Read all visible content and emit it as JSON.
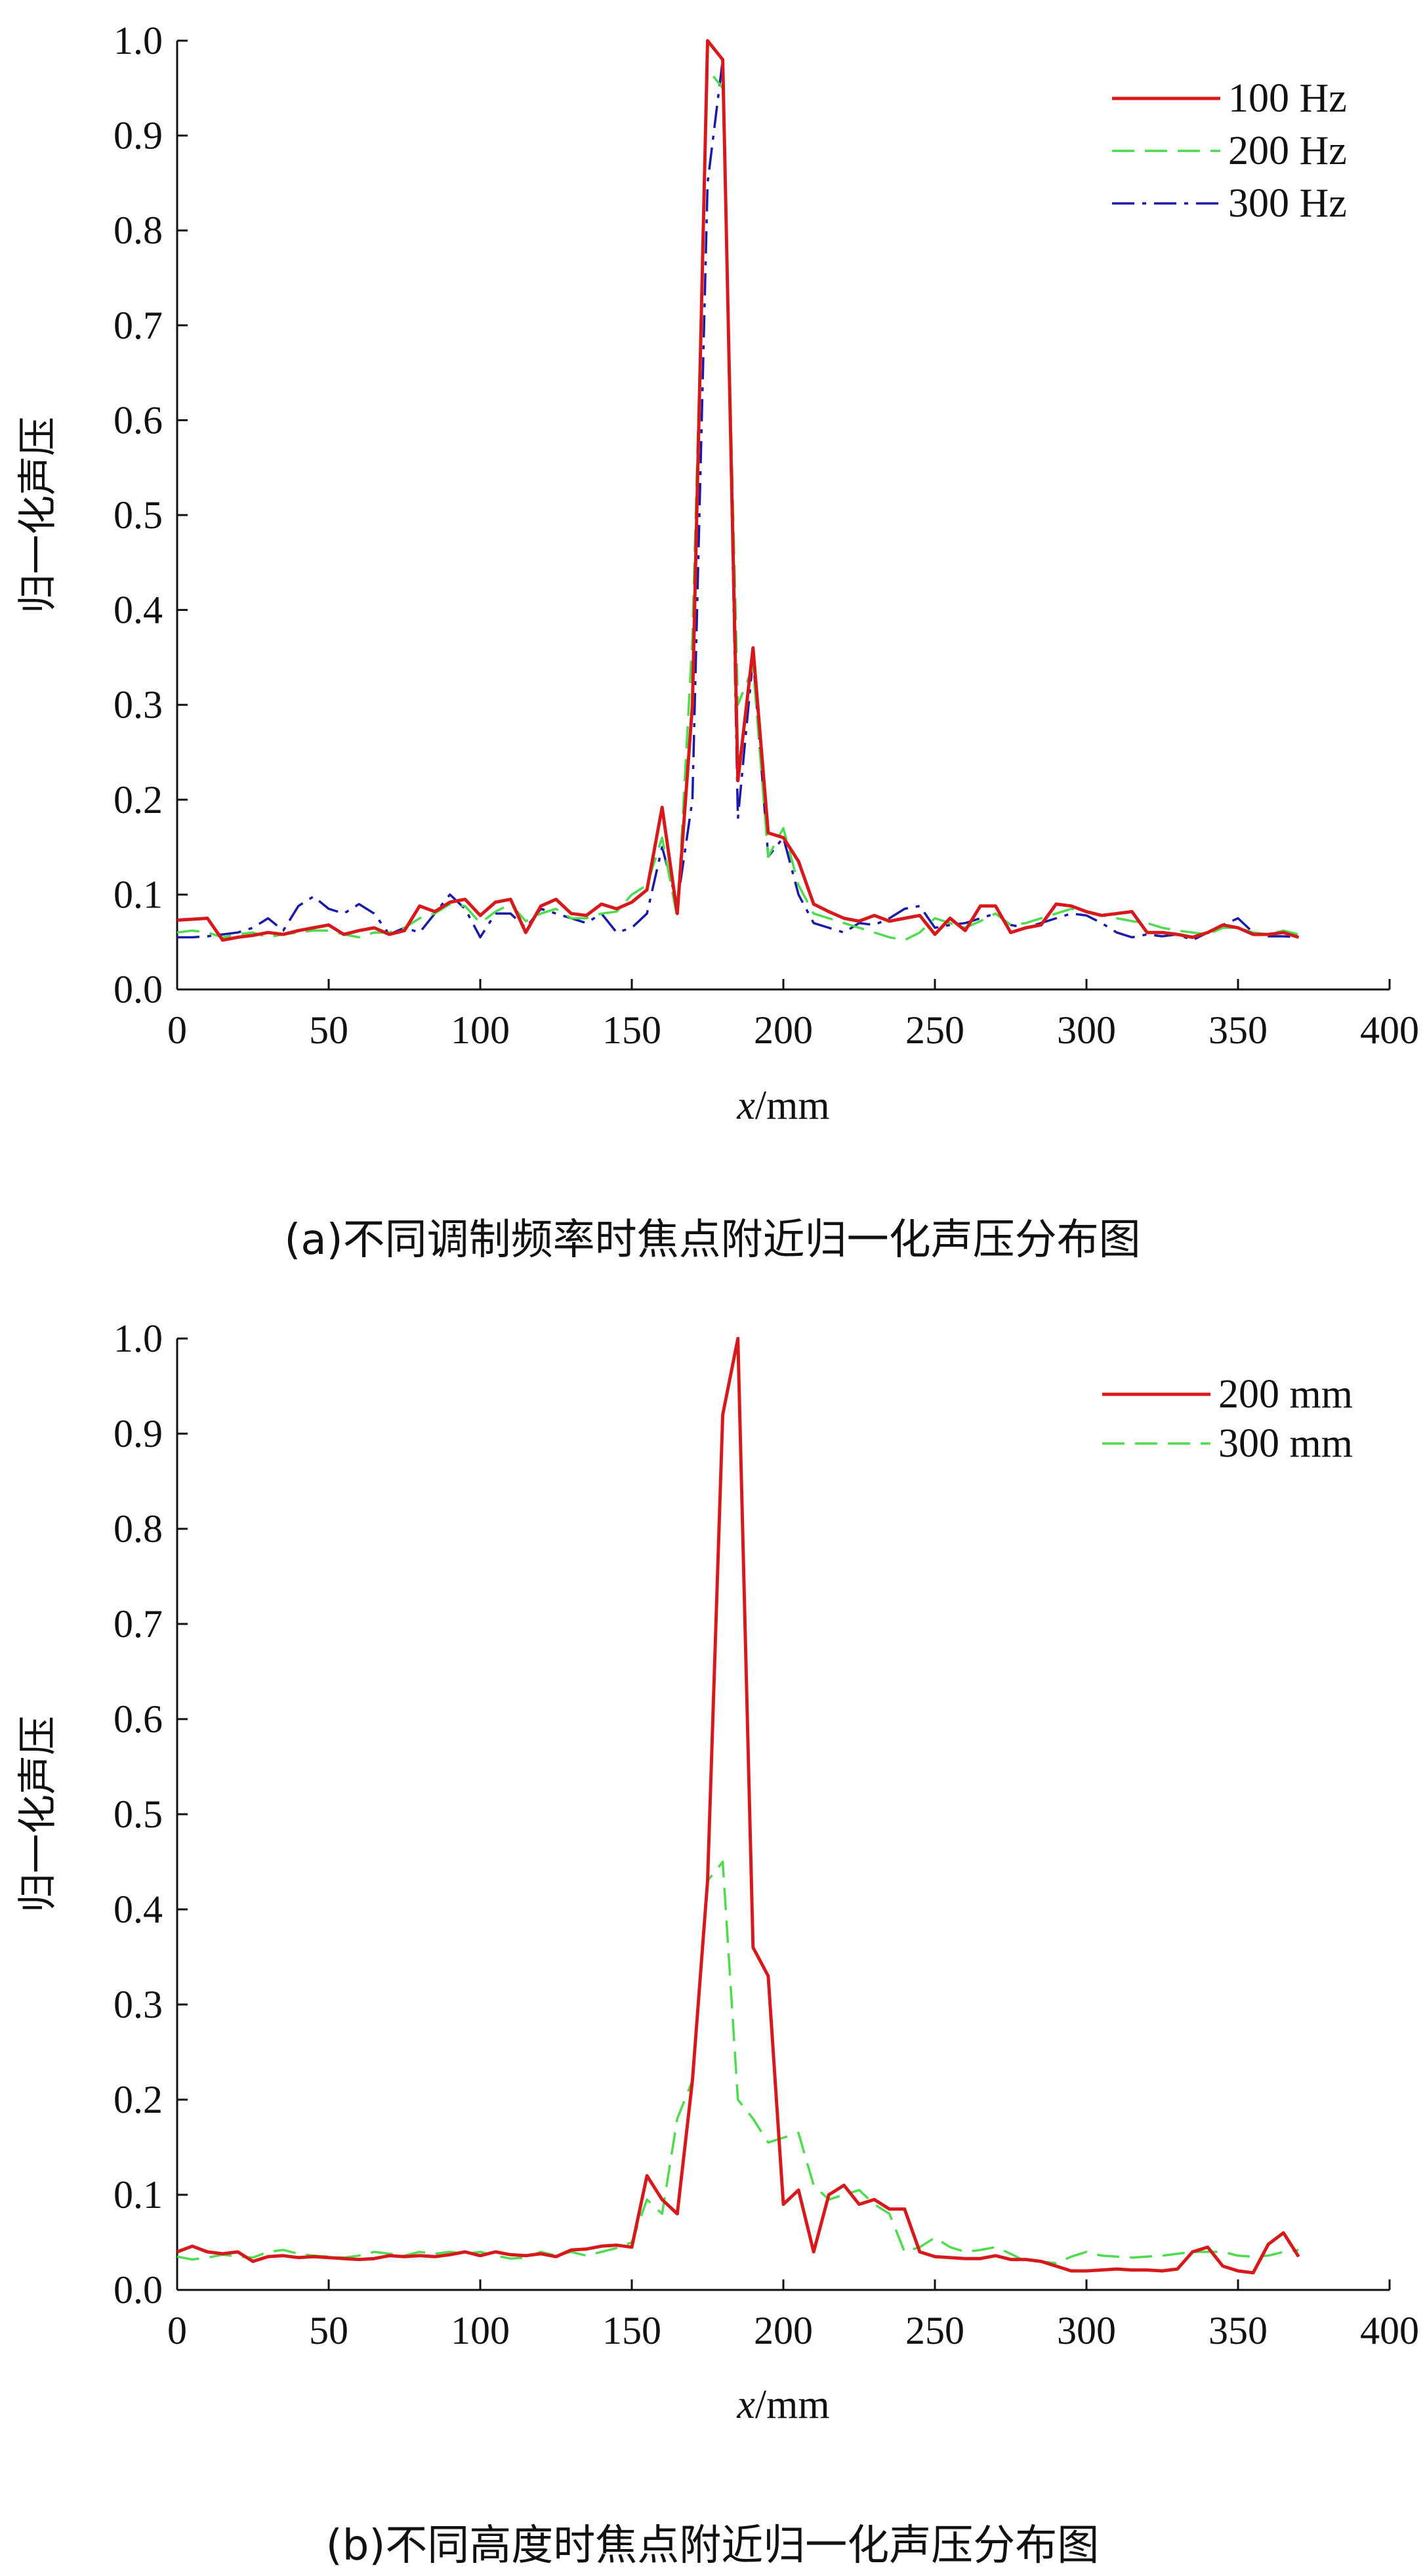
{
  "figure": {
    "caption_a": "(a)不同调制频率时焦点附近归一化声压分布图",
    "caption_b": "(b)不同高度时焦点附近归一化声压分布图"
  },
  "chart_data": [
    {
      "type": "line",
      "title": "",
      "xlabel_italic": "x",
      "xlabel_unit": "/mm",
      "ylabel": "归一化声压",
      "xlim": [
        0,
        400
      ],
      "ylim": [
        0,
        1.0
      ],
      "xticks": [
        "0",
        "50",
        "100",
        "150",
        "200",
        "250",
        "300",
        "350",
        "400"
      ],
      "yticks": [
        "0.0",
        "0.1",
        "0.2",
        "0.3",
        "0.4",
        "0.5",
        "0.6",
        "0.7",
        "0.8",
        "0.9",
        "1.0"
      ],
      "legend_position": "top-right",
      "x": [
        0,
        5,
        10,
        15,
        20,
        25,
        30,
        35,
        40,
        45,
        50,
        55,
        60,
        65,
        70,
        75,
        80,
        85,
        90,
        95,
        100,
        105,
        110,
        115,
        120,
        125,
        130,
        135,
        140,
        145,
        150,
        155,
        160,
        165,
        170,
        175,
        180,
        185,
        190,
        195,
        200,
        205,
        210,
        215,
        220,
        225,
        230,
        235,
        240,
        245,
        250,
        255,
        260,
        265,
        270,
        275,
        280,
        285,
        290,
        295,
        300,
        305,
        310,
        315,
        320,
        325,
        330,
        335,
        340,
        345,
        350,
        355,
        360,
        365,
        370
      ],
      "series": [
        {
          "name": "100 Hz",
          "color": "#d7191c",
          "dash": "solid",
          "values": [
            0.073,
            0.074,
            0.075,
            0.052,
            0.055,
            0.057,
            0.06,
            0.058,
            0.062,
            0.065,
            0.068,
            0.058,
            0.062,
            0.065,
            0.058,
            0.062,
            0.088,
            0.082,
            0.092,
            0.095,
            0.078,
            0.092,
            0.095,
            0.06,
            0.088,
            0.095,
            0.08,
            0.078,
            0.09,
            0.085,
            0.092,
            0.105,
            0.192,
            0.08,
            0.3,
            1.0,
            0.98,
            0.22,
            0.36,
            0.165,
            0.16,
            0.135,
            0.09,
            0.082,
            0.075,
            0.072,
            0.078,
            0.072,
            0.075,
            0.078,
            0.058,
            0.075,
            0.062,
            0.088,
            0.088,
            0.06,
            0.065,
            0.068,
            0.09,
            0.088,
            0.082,
            0.078,
            0.08,
            0.082,
            0.06,
            0.06,
            0.058,
            0.055,
            0.06,
            0.068,
            0.065,
            0.058,
            0.058,
            0.06,
            0.055
          ]
        },
        {
          "name": "200 Hz",
          "color": "#4ddc4d",
          "dash": "dashed",
          "values": [
            0.06,
            0.062,
            0.06,
            0.055,
            0.058,
            0.06,
            0.055,
            0.058,
            0.06,
            0.062,
            0.062,
            0.058,
            0.055,
            0.06,
            0.06,
            0.065,
            0.075,
            0.08,
            0.09,
            0.088,
            0.07,
            0.082,
            0.09,
            0.072,
            0.08,
            0.085,
            0.075,
            0.075,
            0.08,
            0.082,
            0.1,
            0.11,
            0.16,
            0.075,
            0.37,
            0.97,
            0.95,
            0.3,
            0.34,
            0.14,
            0.17,
            0.11,
            0.08,
            0.075,
            0.07,
            0.065,
            0.06,
            0.055,
            0.052,
            0.06,
            0.075,
            0.07,
            0.065,
            0.072,
            0.08,
            0.068,
            0.07,
            0.075,
            0.08,
            0.085,
            0.082,
            0.078,
            0.075,
            0.072,
            0.07,
            0.065,
            0.062,
            0.06,
            0.058,
            0.065,
            0.065,
            0.06,
            0.058,
            0.062,
            0.058
          ]
        },
        {
          "name": "300 Hz",
          "color": "#1a1aa8",
          "dash": "dashdot",
          "values": [
            0.055,
            0.055,
            0.056,
            0.058,
            0.06,
            0.065,
            0.075,
            0.062,
            0.088,
            0.098,
            0.085,
            0.08,
            0.09,
            0.08,
            0.058,
            0.065,
            0.06,
            0.08,
            0.1,
            0.085,
            0.055,
            0.08,
            0.08,
            0.065,
            0.085,
            0.08,
            0.075,
            0.07,
            0.08,
            0.06,
            0.065,
            0.08,
            0.15,
            0.09,
            0.2,
            0.85,
            0.98,
            0.18,
            0.35,
            0.14,
            0.16,
            0.1,
            0.07,
            0.065,
            0.06,
            0.07,
            0.068,
            0.075,
            0.085,
            0.088,
            0.065,
            0.068,
            0.07,
            0.075,
            0.08,
            0.068,
            0.065,
            0.07,
            0.075,
            0.08,
            0.078,
            0.07,
            0.06,
            0.055,
            0.058,
            0.056,
            0.058,
            0.052,
            0.06,
            0.068,
            0.075,
            0.06,
            0.056,
            0.056,
            0.055
          ]
        }
      ]
    },
    {
      "type": "line",
      "title": "",
      "xlabel_italic": "x",
      "xlabel_unit": "/mm",
      "ylabel": "归一化声压",
      "xlim": [
        0,
        400
      ],
      "ylim": [
        0,
        1.0
      ],
      "xticks": [
        "0",
        "50",
        "100",
        "150",
        "200",
        "250",
        "300",
        "350",
        "400"
      ],
      "yticks": [
        "0.0",
        "0.1",
        "0.2",
        "0.3",
        "0.4",
        "0.5",
        "0.6",
        "0.7",
        "0.8",
        "0.9",
        "1.0"
      ],
      "legend_position": "top-right",
      "x": [
        0,
        5,
        10,
        15,
        20,
        25,
        30,
        35,
        40,
        45,
        50,
        55,
        60,
        65,
        70,
        75,
        80,
        85,
        90,
        95,
        100,
        105,
        110,
        115,
        120,
        125,
        130,
        135,
        140,
        145,
        150,
        155,
        160,
        165,
        170,
        175,
        180,
        185,
        190,
        195,
        200,
        205,
        210,
        215,
        220,
        225,
        230,
        235,
        240,
        245,
        250,
        255,
        260,
        265,
        270,
        275,
        280,
        285,
        290,
        295,
        300,
        305,
        310,
        315,
        320,
        325,
        330,
        335,
        340,
        345,
        350,
        355,
        360,
        365,
        370
      ],
      "series": [
        {
          "name": "200 mm",
          "color": "#d7191c",
          "dash": "solid",
          "values": [
            0.04,
            0.046,
            0.04,
            0.038,
            0.04,
            0.03,
            0.035,
            0.036,
            0.034,
            0.035,
            0.034,
            0.033,
            0.032,
            0.033,
            0.036,
            0.035,
            0.036,
            0.035,
            0.037,
            0.04,
            0.036,
            0.04,
            0.037,
            0.036,
            0.038,
            0.035,
            0.042,
            0.043,
            0.046,
            0.047,
            0.045,
            0.12,
            0.095,
            0.08,
            0.22,
            0.43,
            0.92,
            1.0,
            0.36,
            0.33,
            0.09,
            0.105,
            0.04,
            0.1,
            0.11,
            0.09,
            0.095,
            0.085,
            0.085,
            0.04,
            0.035,
            0.034,
            0.033,
            0.033,
            0.036,
            0.032,
            0.032,
            0.03,
            0.025,
            0.02,
            0.02,
            0.021,
            0.022,
            0.021,
            0.021,
            0.02,
            0.022,
            0.04,
            0.045,
            0.025,
            0.02,
            0.018,
            0.048,
            0.06,
            0.035
          ]
        },
        {
          "name": "300 mm",
          "color": "#4ddc4d",
          "dash": "dashed",
          "values": [
            0.035,
            0.032,
            0.034,
            0.037,
            0.035,
            0.034,
            0.04,
            0.042,
            0.038,
            0.036,
            0.035,
            0.034,
            0.036,
            0.04,
            0.038,
            0.036,
            0.04,
            0.038,
            0.04,
            0.038,
            0.04,
            0.036,
            0.033,
            0.034,
            0.04,
            0.036,
            0.04,
            0.036,
            0.04,
            0.044,
            0.05,
            0.095,
            0.08,
            0.18,
            0.22,
            0.43,
            0.45,
            0.2,
            0.18,
            0.155,
            0.16,
            0.165,
            0.11,
            0.095,
            0.1,
            0.105,
            0.09,
            0.08,
            0.04,
            0.045,
            0.055,
            0.045,
            0.04,
            0.042,
            0.045,
            0.038,
            0.03,
            0.03,
            0.028,
            0.035,
            0.04,
            0.036,
            0.035,
            0.034,
            0.035,
            0.036,
            0.038,
            0.04,
            0.04,
            0.04,
            0.036,
            0.035,
            0.036,
            0.04,
            0.042
          ]
        }
      ]
    }
  ]
}
